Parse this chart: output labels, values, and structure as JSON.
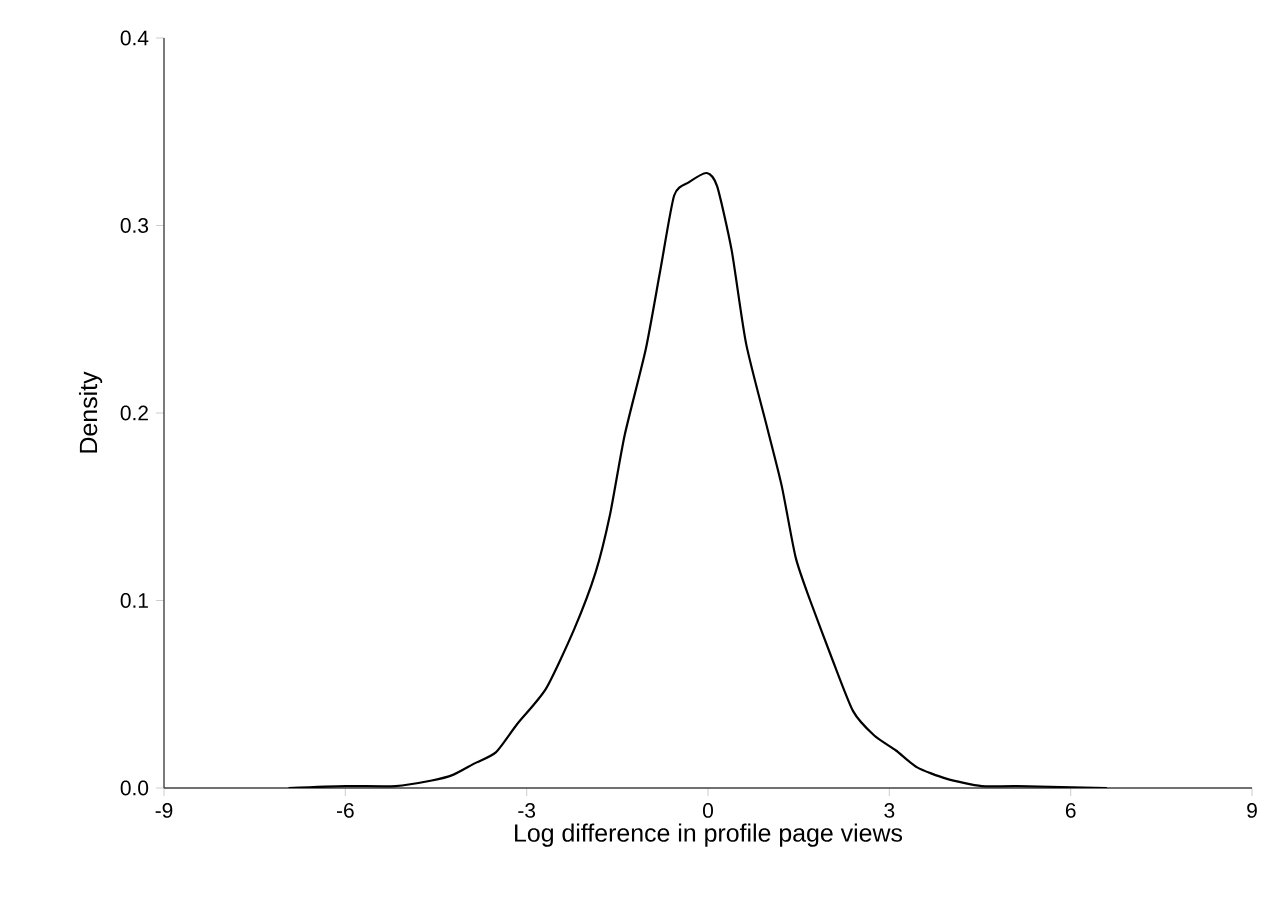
{
  "chart_data": {
    "type": "line",
    "xlabel": "Log difference in profile page views",
    "ylabel": "Density",
    "x": [
      -6.94,
      -6.0,
      -5.17,
      -4.57,
      -4.22,
      -3.87,
      -3.51,
      -3.16,
      -2.68,
      -2.21,
      -1.86,
      -1.62,
      -1.38,
      -1.03,
      -0.79,
      -0.56,
      -0.32,
      -0.02,
      0.15,
      0.39,
      0.63,
      0.98,
      1.22,
      1.45,
      1.69,
      2.04,
      2.4,
      2.75,
      3.11,
      3.46,
      3.94,
      4.53,
      5.12,
      6.6
    ],
    "series": [
      {
        "color": "#000000",
        "values": [
          0.0,
          0.001,
          0.001,
          0.004,
          0.007,
          0.013,
          0.019,
          0.034,
          0.053,
          0.085,
          0.115,
          0.146,
          0.188,
          0.234,
          0.276,
          0.316,
          0.323,
          0.328,
          0.321,
          0.287,
          0.237,
          0.192,
          0.161,
          0.123,
          0.1,
          0.07,
          0.041,
          0.028,
          0.02,
          0.011,
          0.005,
          0.001,
          0.001,
          0.0
        ]
      }
    ],
    "xlim": [
      -9,
      9
    ],
    "xticks": [
      -9,
      -6,
      -3,
      0,
      3,
      6,
      9
    ],
    "ylim": [
      0,
      0.4
    ],
    "yticks": [
      {
        "value": 0,
        "label": "0.0"
      },
      {
        "value": 0.1,
        "label": "0.1"
      },
      {
        "value": 0.2,
        "label": "0.2"
      },
      {
        "value": 0.3,
        "label": "0.3"
      },
      {
        "value": 0.4,
        "label": "0.4"
      }
    ],
    "grid": false,
    "marker": "none",
    "line_style": "solid"
  }
}
